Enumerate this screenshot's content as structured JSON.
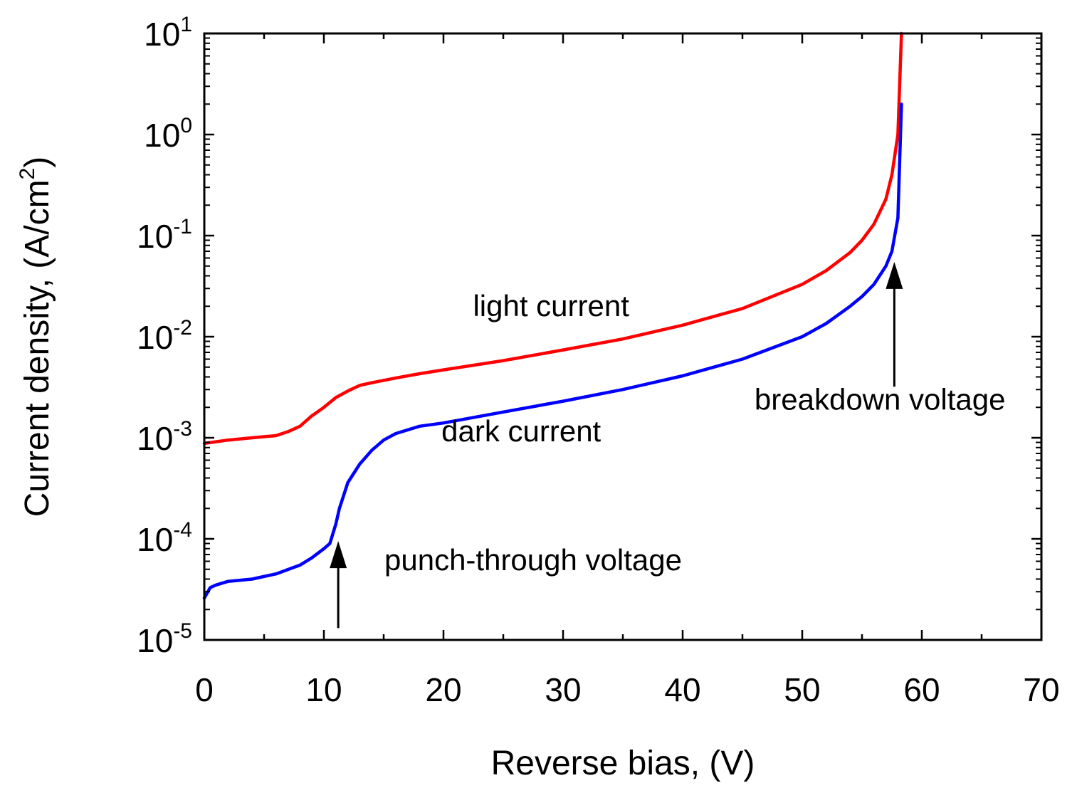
{
  "chart_data": {
    "type": "line",
    "title": "",
    "xlabel": "Reverse bias, (V)",
    "ylabel": {
      "text": "Current density, (A/cm",
      "sup": "2",
      "close": ")"
    },
    "xlim": [
      0,
      70
    ],
    "ylim_log10": [
      -5,
      1
    ],
    "yscale": "log",
    "x_ticks": [
      "0",
      "10",
      "20",
      "30",
      "40",
      "50",
      "60",
      "70"
    ],
    "y_ticks": [
      {
        "base": "10",
        "exp": "-5"
      },
      {
        "base": "10",
        "exp": "-4"
      },
      {
        "base": "10",
        "exp": "-3"
      },
      {
        "base": "10",
        "exp": "-2"
      },
      {
        "base": "10",
        "exp": "-1"
      },
      {
        "base": "10",
        "exp": "0"
      },
      {
        "base": "10",
        "exp": "1"
      }
    ],
    "series": [
      {
        "name": "light current",
        "color": "#ff0000",
        "x": [
          0,
          2,
          4,
          6,
          7,
          8,
          9,
          10,
          11,
          12,
          13,
          14,
          16,
          18,
          20,
          25,
          30,
          35,
          40,
          45,
          50,
          52,
          54,
          55,
          56,
          57,
          57.5,
          58,
          58.3
        ],
        "y": [
          0.00088,
          0.00095,
          0.001,
          0.00105,
          0.00115,
          0.0013,
          0.00165,
          0.002,
          0.0025,
          0.0029,
          0.0033,
          0.0035,
          0.0039,
          0.0043,
          0.0047,
          0.0058,
          0.0074,
          0.0095,
          0.013,
          0.019,
          0.033,
          0.045,
          0.068,
          0.09,
          0.13,
          0.23,
          0.4,
          1.0,
          10.0
        ]
      },
      {
        "name": "dark current",
        "color": "#0000ff",
        "x": [
          0,
          0.5,
          1,
          2,
          4,
          6,
          8,
          9,
          10,
          10.5,
          11,
          11.3,
          11.7,
          12,
          13,
          14,
          15,
          16,
          18,
          20,
          25,
          30,
          35,
          40,
          45,
          50,
          52,
          54,
          55,
          56,
          57,
          57.5,
          58,
          58.3
        ],
        "y": [
          2.6e-05,
          3.3e-05,
          3.5e-05,
          3.8e-05,
          4e-05,
          4.5e-05,
          5.5e-05,
          6.5e-05,
          8e-05,
          9e-05,
          0.00014,
          0.0002,
          0.00028,
          0.00036,
          0.00055,
          0.00075,
          0.00095,
          0.0011,
          0.0013,
          0.0014,
          0.0018,
          0.0023,
          0.003,
          0.0041,
          0.006,
          0.01,
          0.0135,
          0.02,
          0.025,
          0.033,
          0.05,
          0.07,
          0.15,
          2.0
        ]
      }
    ],
    "annotations": [
      {
        "text": "light current",
        "x": 29,
        "y": 0.016
      },
      {
        "text": "dark current",
        "x": 26.5,
        "y": 0.00092
      },
      {
        "text": "breakdown voltage",
        "x": 56.5,
        "y": 0.0019
      },
      {
        "text": "punch-through voltage",
        "x": 27.5,
        "y": 4.9e-05
      }
    ],
    "arrows": [
      {
        "label": "punch-through voltage",
        "x": 11.2,
        "y_tail": 1.31e-05,
        "y_head": 9.5e-05
      },
      {
        "label": "breakdown voltage",
        "x": 57.7,
        "y_tail": 0.0032,
        "y_head": 0.055
      }
    ]
  }
}
